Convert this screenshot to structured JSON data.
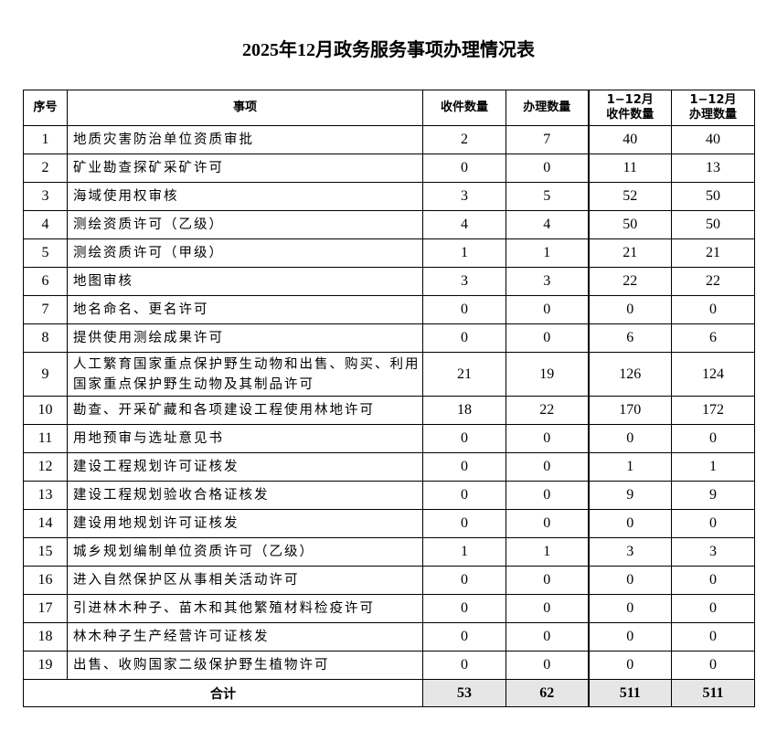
{
  "title": "2025年12月政务服务事项办理情况表",
  "headers": [
    "序号",
    "事项",
    "收件数量",
    "办理数量",
    "1−12月\n收件数量",
    "1−12月\n办理数量"
  ],
  "header_lines": {
    "h5a": "1−12月",
    "h5b": "收件数量",
    "h6a": "1−12月",
    "h6b": "办理数量"
  },
  "rows": [
    {
      "no": "1",
      "item": "地质灾害防治单位资质审批",
      "recv": "2",
      "done": "7",
      "ytd_recv": "40",
      "ytd_done": "40"
    },
    {
      "no": "2",
      "item": "矿业勘查探矿采矿许可",
      "recv": "0",
      "done": "0",
      "ytd_recv": "11",
      "ytd_done": "13"
    },
    {
      "no": "3",
      "item": "海域使用权审核",
      "recv": "3",
      "done": "5",
      "ytd_recv": "52",
      "ytd_done": "50"
    },
    {
      "no": "4",
      "item": "测绘资质许可（乙级）",
      "recv": "4",
      "done": "4",
      "ytd_recv": "50",
      "ytd_done": "50"
    },
    {
      "no": "5",
      "item": "测绘资质许可（甲级）",
      "recv": "1",
      "done": "1",
      "ytd_recv": "21",
      "ytd_done": "21"
    },
    {
      "no": "6",
      "item": "地图审核",
      "recv": "3",
      "done": "3",
      "ytd_recv": "22",
      "ytd_done": "22"
    },
    {
      "no": "7",
      "item": "地名命名、更名许可",
      "recv": "0",
      "done": "0",
      "ytd_recv": "0",
      "ytd_done": "0"
    },
    {
      "no": "8",
      "item": "提供使用测绘成果许可",
      "recv": "0",
      "done": "0",
      "ytd_recv": "6",
      "ytd_done": "6"
    },
    {
      "no": "9",
      "item": "人工繁育国家重点保护野生动物和出售、购买、利用国家重点保护野生动物及其制品许可",
      "recv": "21",
      "done": "19",
      "ytd_recv": "126",
      "ytd_done": "124"
    },
    {
      "no": "10",
      "item": "勘查、开采矿藏和各项建设工程使用林地许可",
      "recv": "18",
      "done": "22",
      "ytd_recv": "170",
      "ytd_done": "172"
    },
    {
      "no": "11",
      "item": "用地预审与选址意见书",
      "recv": "0",
      "done": "0",
      "ytd_recv": "0",
      "ytd_done": "0"
    },
    {
      "no": "12",
      "item": "建设工程规划许可证核发",
      "recv": "0",
      "done": "0",
      "ytd_recv": "1",
      "ytd_done": "1"
    },
    {
      "no": "13",
      "item": "建设工程规划验收合格证核发",
      "recv": "0",
      "done": "0",
      "ytd_recv": "9",
      "ytd_done": "9"
    },
    {
      "no": "14",
      "item": "建设用地规划许可证核发",
      "recv": "0",
      "done": "0",
      "ytd_recv": "0",
      "ytd_done": "0"
    },
    {
      "no": "15",
      "item": "城乡规划编制单位资质许可（乙级）",
      "recv": "1",
      "done": "1",
      "ytd_recv": "3",
      "ytd_done": "3"
    },
    {
      "no": "16",
      "item": "进入自然保护区从事相关活动许可",
      "recv": "0",
      "done": "0",
      "ytd_recv": "0",
      "ytd_done": "0"
    },
    {
      "no": "17",
      "item": "引进林木种子、苗木和其他繁殖材料检疫许可",
      "recv": "0",
      "done": "0",
      "ytd_recv": "0",
      "ytd_done": "0"
    },
    {
      "no": "18",
      "item": "林木种子生产经营许可证核发",
      "recv": "0",
      "done": "0",
      "ytd_recv": "0",
      "ytd_done": "0"
    },
    {
      "no": "19",
      "item": "出售、收购国家二级保护野生植物许可",
      "recv": "0",
      "done": "0",
      "ytd_recv": "0",
      "ytd_done": "0"
    }
  ],
  "total": {
    "label": "合计",
    "recv": "53",
    "done": "62",
    "ytd_recv": "511",
    "ytd_done": "511"
  },
  "colors": {
    "total_shade": "#e6e6e6"
  }
}
